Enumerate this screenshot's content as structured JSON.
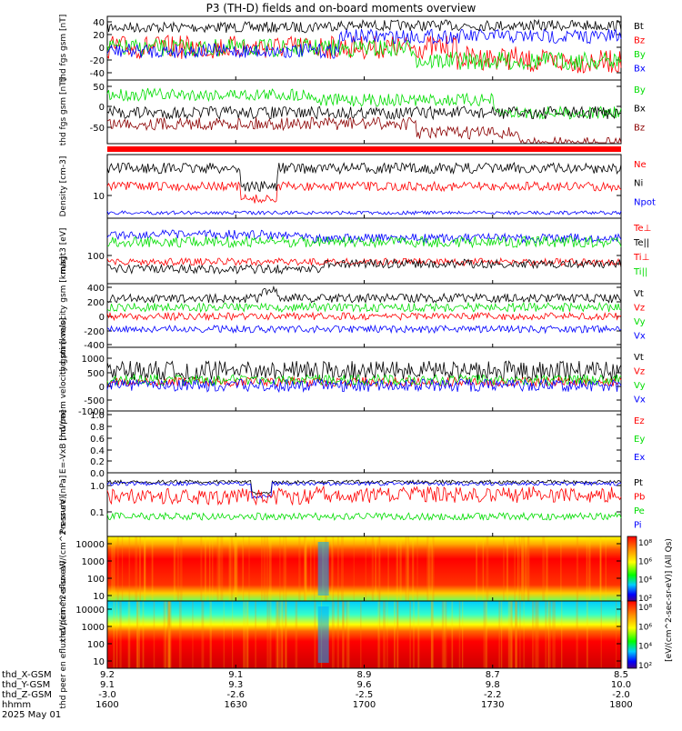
{
  "title": "P3 (TH-D) fields and on-board moments overview",
  "colors": {
    "black": "#000000",
    "red": "#ff0000",
    "green": "#00dd00",
    "blue": "#0000ff",
    "darkred": "#8b0000"
  },
  "xaxis": {
    "ticks": [
      {
        "hhmm": "1600",
        "x_gsm": "9.2",
        "y_gsm": "9.1",
        "z_gsm": "-3.0"
      },
      {
        "hhmm": "1630",
        "x_gsm": "9.1",
        "y_gsm": "9.3",
        "z_gsm": "-2.6"
      },
      {
        "hhmm": "1700",
        "x_gsm": "8.9",
        "y_gsm": "9.6",
        "z_gsm": "-2.5"
      },
      {
        "hhmm": "1730",
        "x_gsm": "8.7",
        "y_gsm": "9.8",
        "z_gsm": "-2.2"
      },
      {
        "hhmm": "1800",
        "x_gsm": "8.5",
        "y_gsm": "10.0",
        "z_gsm": "-2.0"
      }
    ],
    "row_labels": [
      "thd_X-GSM",
      "thd_Y-GSM",
      "thd_Z-GSM",
      "hhmm",
      "2025 May 01"
    ]
  },
  "colorbar_label": "[eV/(cm^2-sec-sr-eV)] (All Qs)",
  "colorbar_ticks": [
    "10⁸",
    "10⁶",
    "10⁴",
    "10²"
  ],
  "chart_data": [
    {
      "type": "line",
      "id": "fgs",
      "ylabel": "thd fgs gsm [nT]",
      "yticks": [
        "40",
        "20",
        "0",
        "-20",
        "-40"
      ],
      "series": [
        {
          "name": "Bt",
          "color": "black"
        },
        {
          "name": "Bz",
          "color": "red"
        },
        {
          "name": "By",
          "color": "green"
        },
        {
          "name": "Bx",
          "color": "blue"
        }
      ]
    },
    {
      "type": "line",
      "id": "fgs_dsl",
      "ylabel": "thd fgs gsm [nT]",
      "yticks": [
        "50",
        "0",
        "-50"
      ],
      "series": [
        {
          "name": "By",
          "color": "green"
        },
        {
          "name": "Bx",
          "color": "black"
        },
        {
          "name": "Bz",
          "color": "darkred"
        }
      ]
    },
    {
      "type": "line",
      "id": "density",
      "ylabel": "Density [cm-3]",
      "yticks": [
        "10"
      ],
      "series": [
        {
          "name": "Ne",
          "color": "red"
        },
        {
          "name": "Ni",
          "color": "black"
        },
        {
          "name": "Npot",
          "color": "blue"
        }
      ]
    },
    {
      "type": "line",
      "id": "temp",
      "ylabel": "magt3 [eV]",
      "yticks": [
        "100"
      ],
      "series": [
        {
          "name": "Te⊥",
          "color": "red"
        },
        {
          "name": "Te||",
          "color": "black"
        },
        {
          "name": "Ti⊥",
          "color": "red"
        },
        {
          "name": "Ti||",
          "color": "green"
        }
      ]
    },
    {
      "type": "line",
      "id": "vi",
      "ylabel": "thd ptim velocity gsm [km/s]",
      "yticks": [
        "400",
        "200",
        "0",
        "-200",
        "-400"
      ],
      "series": [
        {
          "name": "Vt",
          "color": "black"
        },
        {
          "name": "Vz",
          "color": "red"
        },
        {
          "name": "Vy",
          "color": "green"
        },
        {
          "name": "Vx",
          "color": "blue"
        }
      ]
    },
    {
      "type": "line",
      "id": "ve",
      "ylabel": "thd peem velocity gsm [km/s]",
      "yticks": [
        "1000",
        "500",
        "0",
        "-500",
        "-1000"
      ],
      "series": [
        {
          "name": "Vt",
          "color": "black"
        },
        {
          "name": "Vz",
          "color": "red"
        },
        {
          "name": "Vy",
          "color": "green"
        },
        {
          "name": "Vx",
          "color": "blue"
        }
      ]
    },
    {
      "type": "line",
      "id": "efield",
      "ylabel": "E=-VxB [mV/m]",
      "yticks": [
        "1.0",
        "0.8",
        "0.6",
        "0.4",
        "0.2",
        "0.0"
      ],
      "series": [
        {
          "name": "Ez",
          "color": "red"
        },
        {
          "name": "Ey",
          "color": "green"
        },
        {
          "name": "Ex",
          "color": "blue"
        }
      ]
    },
    {
      "type": "line",
      "id": "pressure",
      "ylabel": "Pressure [nPa]",
      "yticks": [
        "1.0",
        "0.1"
      ],
      "series": [
        {
          "name": "Pt",
          "color": "black"
        },
        {
          "name": "Pb",
          "color": "red"
        },
        {
          "name": "Pe",
          "color": "green"
        },
        {
          "name": "Pi",
          "color": "blue"
        }
      ]
    },
    {
      "type": "heatmap",
      "id": "peir",
      "ylabel": "thd peir en eflux eV/(cm^2-s-sr-eV)",
      "yticks": [
        "10000",
        "1000",
        "100",
        "10"
      ]
    },
    {
      "type": "heatmap",
      "id": "peer",
      "ylabel": "thd peer en eflux eV/(cm^2-s-sr-eV)",
      "yticks": [
        "10000",
        "1000",
        "100",
        "10"
      ]
    }
  ]
}
